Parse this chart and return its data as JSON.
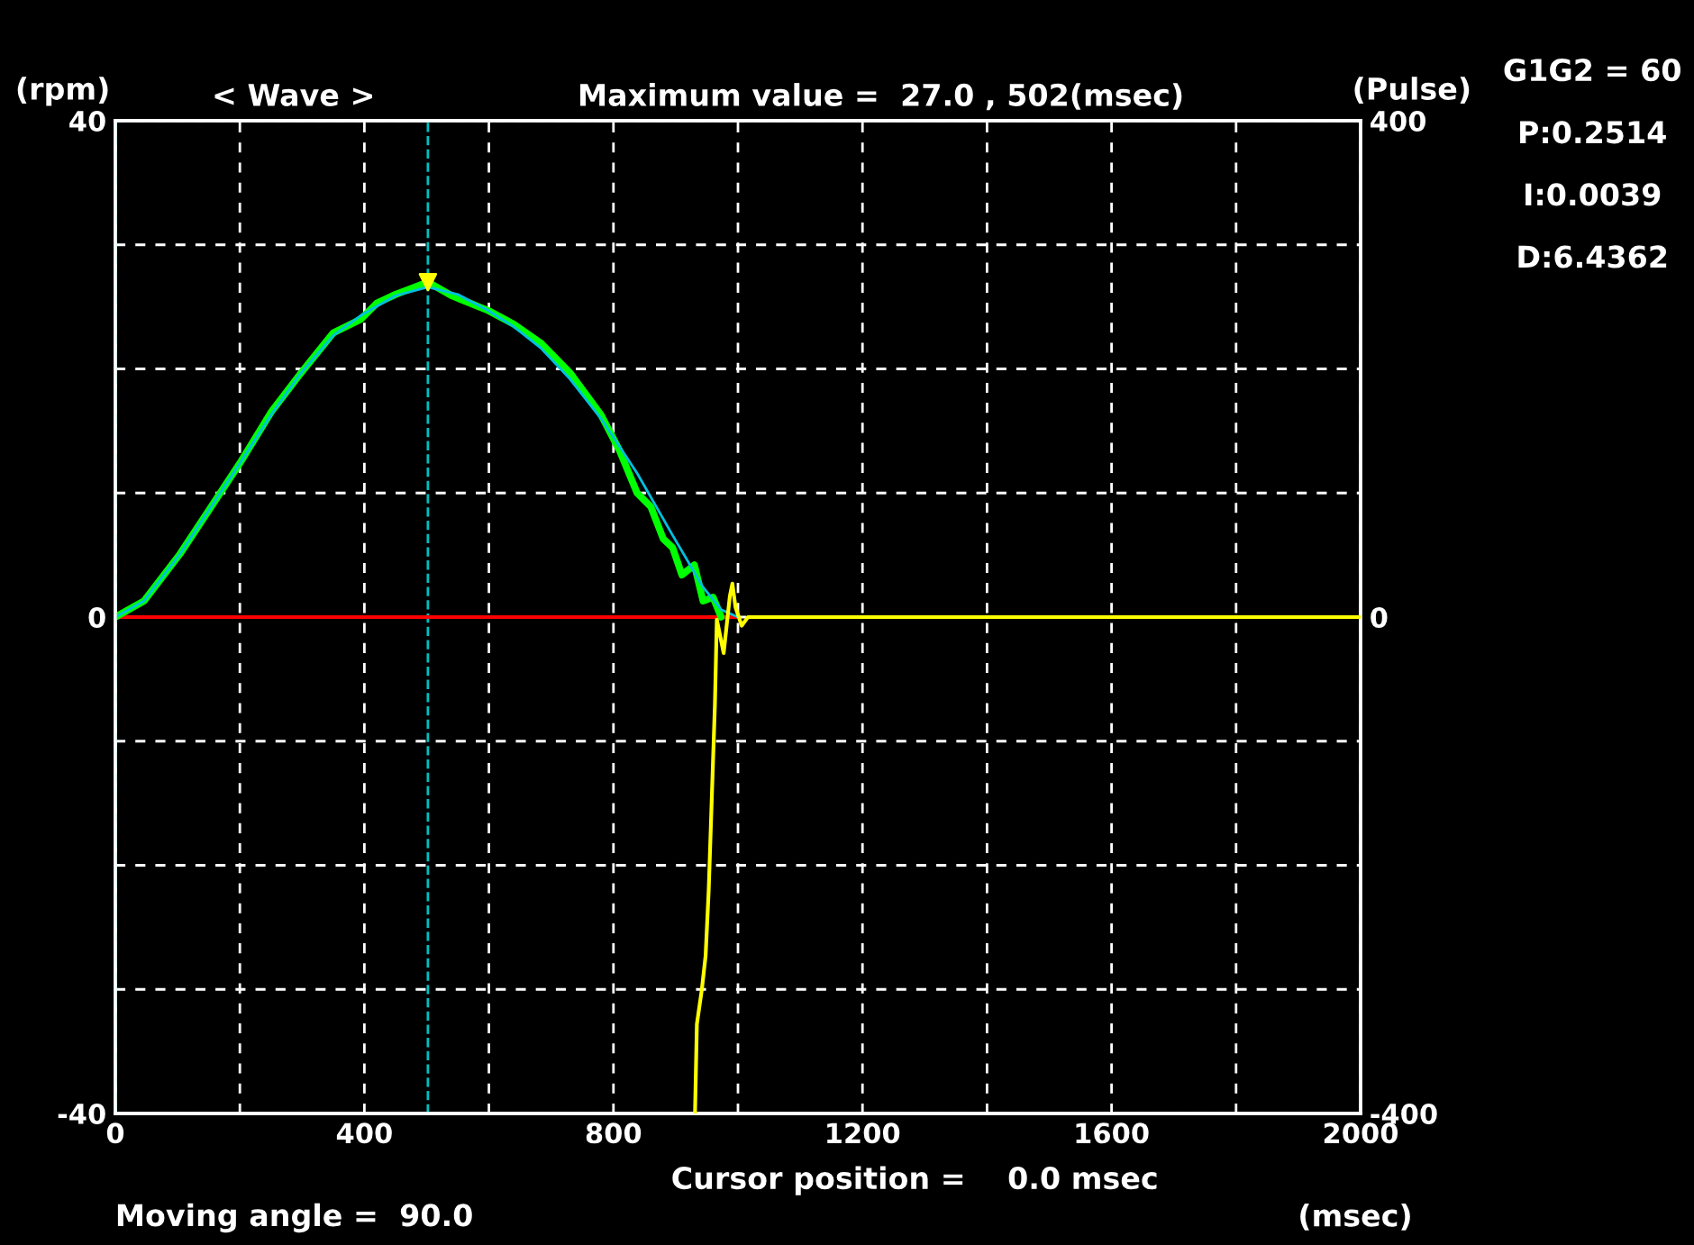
{
  "chart_data": {
    "type": "line",
    "title": "< Wave >",
    "subtitle": "Maximum value =  27.0 , 502(msec)",
    "xlabel": "(msec)",
    "ylabel": "(rpm)",
    "y2label": "(Pulse)",
    "annotations": [
      "Cursor position =    0.0 msec",
      "Moving angle =  90.0",
      "G1G2 = 60",
      "P:0.2514",
      "I:0.0039",
      "D:6.4362"
    ],
    "xlim": [
      0,
      2000
    ],
    "xticks": [
      0,
      {
        "value": 200,
        "label": null
      },
      400,
      {
        "value": 600,
        "label": null
      },
      800,
      {
        "value": 1000,
        "label": null
      },
      1200,
      {
        "value": 1400,
        "label": null
      },
      1600,
      {
        "value": 1800,
        "label": null
      },
      2000
    ],
    "ylim": [
      -40,
      40
    ],
    "yticks": [
      -40,
      {
        "value": -30,
        "label": null
      },
      {
        "value": -20,
        "label": null
      },
      {
        "value": -10,
        "label": null
      },
      0,
      {
        "value": 10,
        "label": null
      },
      {
        "value": 20,
        "label": null
      },
      {
        "value": 30,
        "label": null
      },
      40
    ],
    "y2lim": [
      -400,
      400
    ],
    "y2ticks": [
      -400,
      0,
      400
    ],
    "grid": true,
    "line_style": "solid",
    "ref_lines": [
      {
        "axis": "x",
        "value": 0,
        "color": "#00c0c0",
        "line_style": "dashed"
      },
      {
        "axis": "x",
        "value": 502,
        "color": "#00c0c0",
        "line_style": "dashed"
      }
    ],
    "series": [
      {
        "color": "#ff0000",
        "x": [
          0,
          1000
        ],
        "values": [
          0,
          0
        ]
      },
      {
        "color": "#00ff00",
        "x": [
          0,
          46,
          104,
          150,
          200,
          250,
          297,
          350,
          394,
          420,
          450,
          502,
          540,
          599,
          640,
          683,
          730,
          780,
          810,
          838,
          860,
          880,
          895,
          910,
          930,
          944,
          960,
          973
        ],
        "values": [
          0,
          1.3,
          5.1,
          8.6,
          12.4,
          16.5,
          19.6,
          22.9,
          24.0,
          25.3,
          26.0,
          27.0,
          25.9,
          24.7,
          23.6,
          22.1,
          19.7,
          16.3,
          13.4,
          10.0,
          8.9,
          6.3,
          5.6,
          3.4,
          4.2,
          1.3,
          1.6,
          0
        ]
      },
      {
        "color": "#00c0e0",
        "x": [
          0,
          46,
          104,
          150,
          200,
          250,
          297,
          350,
          394,
          450,
          502,
          550,
          599,
          640,
          683,
          730,
          780,
          838,
          895,
          944,
          973,
          1000
        ],
        "values": [
          0,
          1.3,
          5.1,
          8.6,
          12.4,
          16.3,
          19.6,
          22.7,
          24.3,
          25.9,
          26.6,
          26.0,
          24.7,
          23.4,
          21.7,
          19.2,
          16.0,
          11.6,
          6.6,
          2.4,
          0.6,
          0
        ]
      },
      {
        "color": "#ffff00",
        "axis": "y2",
        "x": [
          931,
          934,
          942,
          948,
          953,
          958,
          963,
          966,
          977,
          987,
          991,
          996,
          1006,
          1016,
          2000
        ],
        "values": [
          -400,
          -328,
          -300,
          -273,
          -220,
          -145,
          -70,
          -2,
          -29,
          17,
          27,
          8,
          -7,
          0,
          0
        ]
      },
      {
        "type": "scatter",
        "color": "#ffff00",
        "marker": "triangle",
        "x": [
          502
        ],
        "values": [
          27.0
        ]
      }
    ]
  }
}
